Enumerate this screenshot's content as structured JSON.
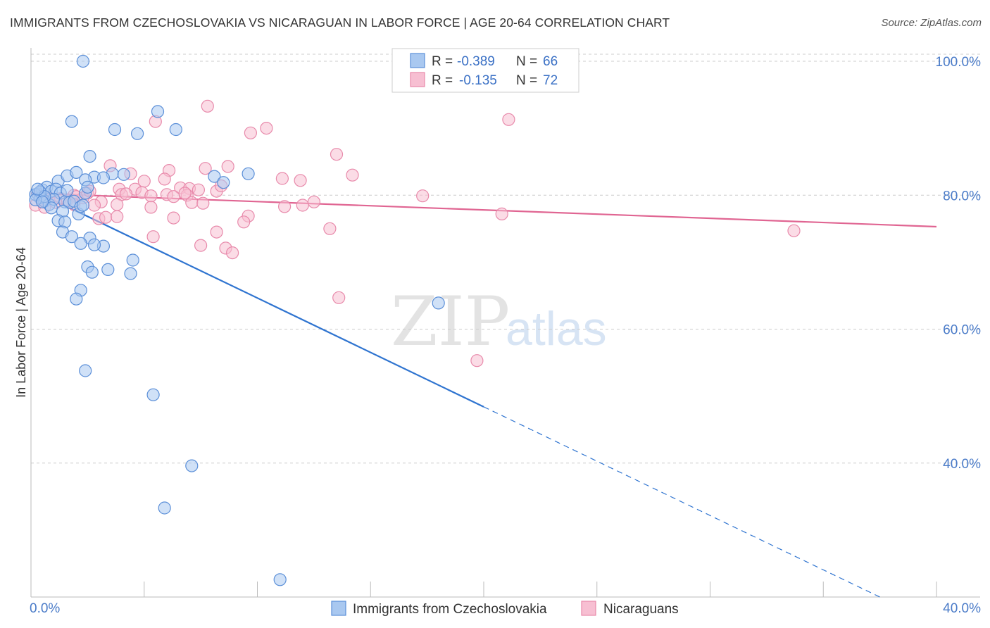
{
  "title": "IMMIGRANTS FROM CZECHOSLOVAKIA VS NICARAGUAN IN LABOR FORCE | AGE 20-64 CORRELATION CHART",
  "source": "Source: ZipAtlas.com",
  "watermark": {
    "zip": "ZIP",
    "atlas": "atlas"
  },
  "colors": {
    "blue_fill": "#a9c8f0",
    "blue_stroke": "#5b8fd8",
    "blue_line": "#2f74d0",
    "pink_fill": "#f7bfd2",
    "pink_stroke": "#e88aab",
    "pink_line": "#e06592",
    "grid": "#cccccc",
    "tick_text": "#4a7bc8"
  },
  "legend": {
    "rows": [
      {
        "r_label": "R =",
        "r_value": "-0.389",
        "n_label": "N =",
        "n_value": "66"
      },
      {
        "r_label": "R =",
        "r_value": "-0.135",
        "n_label": "N =",
        "n_value": "72"
      }
    ]
  },
  "chart_data": {
    "type": "scatter",
    "xlabel": "",
    "ylabel": "In Labor Force | Age 20-64",
    "xlim": [
      0,
      40
    ],
    "ylim": [
      20,
      102
    ],
    "x_tick_labels": [
      "0.0%",
      "40.0%"
    ],
    "y_tick_labels": [
      "100.0%",
      "80.0%",
      "60.0%",
      "40.0%"
    ],
    "y_tick_values": [
      100,
      80,
      60,
      40
    ],
    "grid": true,
    "series": [
      {
        "name": "Immigrants from Czechoslovakia",
        "color": "blue",
        "points": [
          [
            2.3,
            100.0
          ],
          [
            1.8,
            91.0
          ],
          [
            3.7,
            89.8
          ],
          [
            4.7,
            89.2
          ],
          [
            5.6,
            92.5
          ],
          [
            6.4,
            89.8
          ],
          [
            2.6,
            85.8
          ],
          [
            9.6,
            83.2
          ],
          [
            1.2,
            82.1
          ],
          [
            1.6,
            82.9
          ],
          [
            2.0,
            83.4
          ],
          [
            2.8,
            82.7
          ],
          [
            3.6,
            83.2
          ],
          [
            2.4,
            82.3
          ],
          [
            3.2,
            82.6
          ],
          [
            4.1,
            83.1
          ],
          [
            8.1,
            82.8
          ],
          [
            8.5,
            81.9
          ],
          [
            0.3,
            80.2
          ],
          [
            0.5,
            80.8
          ],
          [
            0.7,
            81.2
          ],
          [
            0.9,
            80.6
          ],
          [
            1.1,
            80.9
          ],
          [
            1.3,
            80.3
          ],
          [
            0.4,
            79.6
          ],
          [
            0.6,
            79.1
          ],
          [
            0.8,
            78.6
          ],
          [
            1.0,
            79.4
          ],
          [
            1.5,
            79.0
          ],
          [
            1.7,
            78.9
          ],
          [
            0.2,
            80.1
          ],
          [
            0.4,
            80.5
          ],
          [
            0.6,
            79.8
          ],
          [
            0.2,
            79.3
          ],
          [
            0.9,
            78.1
          ],
          [
            1.4,
            77.6
          ],
          [
            1.2,
            76.2
          ],
          [
            1.5,
            76.0
          ],
          [
            2.1,
            77.2
          ],
          [
            2.4,
            80.3
          ],
          [
            1.9,
            79.1
          ],
          [
            1.6,
            80.7
          ],
          [
            2.2,
            78.3
          ],
          [
            2.5,
            81.2
          ],
          [
            0.3,
            80.9
          ],
          [
            0.5,
            79.0
          ],
          [
            1.4,
            74.5
          ],
          [
            1.8,
            73.8
          ],
          [
            2.6,
            73.6
          ],
          [
            2.2,
            72.8
          ],
          [
            3.2,
            72.4
          ],
          [
            2.8,
            72.6
          ],
          [
            2.5,
            69.3
          ],
          [
            2.7,
            68.5
          ],
          [
            3.4,
            68.9
          ],
          [
            4.5,
            70.3
          ],
          [
            4.4,
            68.3
          ],
          [
            2.2,
            65.8
          ],
          [
            2.0,
            64.5
          ],
          [
            18.0,
            63.9
          ],
          [
            2.4,
            53.8
          ],
          [
            5.4,
            50.2
          ],
          [
            7.1,
            39.6
          ],
          [
            5.9,
            33.3
          ],
          [
            11.0,
            22.6
          ],
          [
            2.3,
            78.5
          ]
        ]
      },
      {
        "name": "Nicaraguans",
        "color": "pink",
        "points": [
          [
            7.8,
            93.3
          ],
          [
            5.5,
            91.0
          ],
          [
            10.4,
            90.0
          ],
          [
            9.7,
            89.3
          ],
          [
            21.1,
            91.3
          ],
          [
            13.5,
            86.1
          ],
          [
            3.5,
            84.4
          ],
          [
            8.7,
            84.3
          ],
          [
            7.7,
            84.0
          ],
          [
            4.4,
            83.2
          ],
          [
            6.1,
            83.7
          ],
          [
            14.2,
            83.0
          ],
          [
            11.1,
            82.5
          ],
          [
            11.9,
            82.2
          ],
          [
            5.0,
            82.1
          ],
          [
            5.9,
            82.4
          ],
          [
            3.9,
            80.9
          ],
          [
            4.6,
            80.9
          ],
          [
            6.6,
            81.1
          ],
          [
            7.0,
            81.0
          ],
          [
            7.4,
            80.8
          ],
          [
            8.2,
            80.6
          ],
          [
            8.4,
            81.4
          ],
          [
            17.3,
            79.9
          ],
          [
            2.5,
            80.3
          ],
          [
            1.9,
            80.0
          ],
          [
            2.3,
            79.6
          ],
          [
            3.1,
            79.0
          ],
          [
            4.0,
            80.1
          ],
          [
            4.9,
            80.4
          ],
          [
            5.3,
            79.9
          ],
          [
            6.0,
            80.1
          ],
          [
            6.3,
            79.8
          ],
          [
            6.9,
            80.0
          ],
          [
            0.5,
            79.2
          ],
          [
            0.8,
            79.6
          ],
          [
            1.3,
            79.5
          ],
          [
            1.6,
            79.3
          ],
          [
            2.0,
            79.8
          ],
          [
            0.3,
            80.2
          ],
          [
            0.2,
            78.5
          ],
          [
            0.6,
            78.2
          ],
          [
            1.9,
            78.6
          ],
          [
            2.8,
            78.5
          ],
          [
            3.8,
            78.6
          ],
          [
            5.3,
            78.2
          ],
          [
            7.1,
            78.9
          ],
          [
            7.6,
            78.8
          ],
          [
            11.2,
            78.3
          ],
          [
            12.0,
            78.5
          ],
          [
            12.5,
            79.0
          ],
          [
            3.0,
            76.5
          ],
          [
            3.3,
            76.7
          ],
          [
            3.8,
            76.8
          ],
          [
            6.3,
            76.6
          ],
          [
            9.6,
            76.9
          ],
          [
            9.4,
            76.0
          ],
          [
            20.8,
            77.2
          ],
          [
            5.4,
            73.8
          ],
          [
            8.2,
            74.5
          ],
          [
            13.2,
            75.0
          ],
          [
            33.7,
            74.7
          ],
          [
            7.5,
            72.5
          ],
          [
            8.6,
            72.1
          ],
          [
            8.9,
            71.4
          ],
          [
            13.6,
            64.7
          ],
          [
            19.7,
            55.3
          ],
          [
            0.4,
            79.9
          ],
          [
            1.1,
            78.9
          ],
          [
            2.6,
            80.6
          ],
          [
            4.2,
            80.2
          ],
          [
            6.8,
            80.3
          ]
        ]
      }
    ],
    "trend_lines": [
      {
        "series": "Immigrants from Czechoslovakia",
        "x_start": 0,
        "y_start": 80.9,
        "x_solid_end": 20,
        "y_solid_end": 48.4,
        "x_dashed_end": 37.5,
        "y_dashed_end": 20.0
      },
      {
        "series": "Nicaraguans",
        "x_start": 0,
        "y_start": 80.3,
        "x_end": 40,
        "y_end": 75.3
      }
    ]
  }
}
